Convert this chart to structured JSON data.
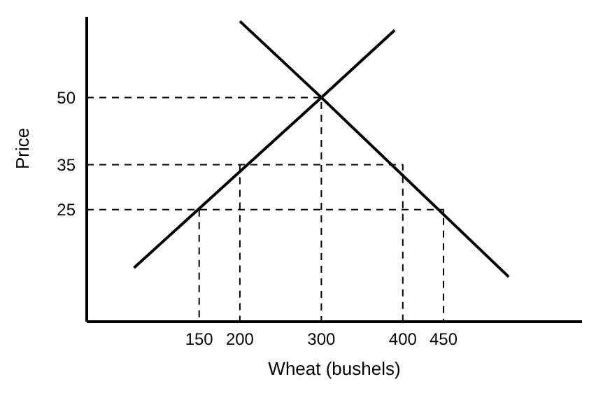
{
  "chart_data": {
    "type": "line",
    "xlabel": "Wheat (bushels)",
    "ylabel": "Price",
    "xlim": [
      12,
      620
    ],
    "ylim": [
      0,
      68
    ],
    "xticks": [
      150,
      200,
      300,
      400,
      450
    ],
    "yticks": [
      25,
      35,
      50
    ],
    "grid": false,
    "marker": "none",
    "series": [
      {
        "color": "#000000",
        "x": [
          70,
          300,
          390
        ],
        "values": [
          12,
          50,
          65
        ]
      },
      {
        "color": "#000000",
        "x": [
          200,
          300,
          530
        ],
        "values": [
          67,
          50,
          10
        ]
      },
      {
        "color": "#000000",
        "line_style": "dashed",
        "x": [
          12,
          300,
          300
        ],
        "values": [
          50,
          50,
          0
        ]
      },
      {
        "color": "#000000",
        "line_style": "dashed",
        "x": [
          12,
          400,
          400
        ],
        "values": [
          35,
          35,
          0
        ]
      },
      {
        "color": "#000000",
        "line_style": "dashed",
        "x": [
          200,
          200
        ],
        "values": [
          35,
          0
        ]
      },
      {
        "color": "#000000",
        "line_style": "dashed",
        "x": [
          12,
          450,
          450
        ],
        "values": [
          25,
          25,
          0
        ]
      },
      {
        "color": "#000000",
        "line_style": "dashed",
        "x": [
          150,
          150
        ],
        "values": [
          25,
          0
        ]
      }
    ]
  }
}
